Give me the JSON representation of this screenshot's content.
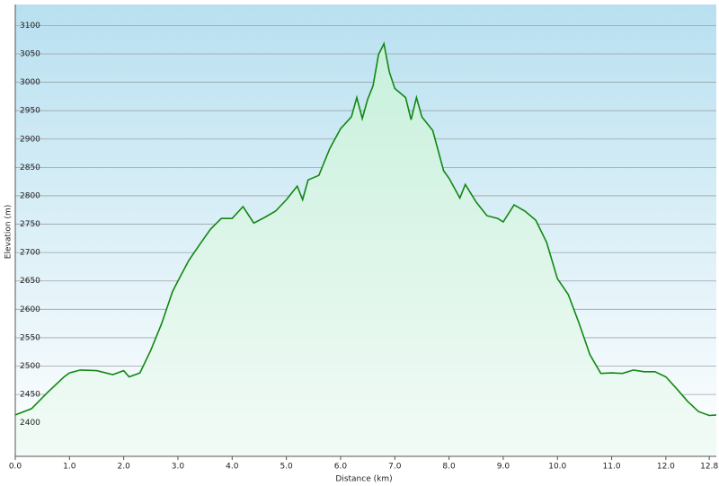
{
  "chart_data": {
    "type": "area",
    "x_label": "Distance (km)",
    "y_label": "Elevation (m)",
    "x": [
      0,
      0.3,
      0.6,
      0.9,
      1.0,
      1.2,
      1.5,
      1.8,
      2.0,
      2.1,
      2.3,
      2.5,
      2.7,
      2.9,
      3.0,
      3.2,
      3.4,
      3.6,
      3.8,
      4.0,
      4.2,
      4.4,
      4.6,
      4.8,
      5.0,
      5.2,
      5.3,
      5.4,
      5.6,
      5.8,
      6.0,
      6.2,
      6.3,
      6.4,
      6.5,
      6.6,
      6.7,
      6.8,
      6.9,
      7.0,
      7.2,
      7.3,
      7.4,
      7.5,
      7.7,
      7.9,
      8.0,
      8.2,
      8.3,
      8.5,
      8.7,
      8.9,
      9.0,
      9.2,
      9.4,
      9.6,
      9.8,
      10.0,
      10.2,
      10.4,
      10.6,
      10.8,
      11.0,
      11.2,
      11.4,
      11.6,
      11.8,
      12.0,
      12.2,
      12.4,
      12.6,
      12.8,
      12.93
    ],
    "values": [
      2414,
      2425,
      2454,
      2481,
      2488,
      2493,
      2492,
      2485,
      2492,
      2481,
      2488,
      2528,
      2575,
      2631,
      2650,
      2686,
      2714,
      2741,
      2760,
      2760,
      2781,
      2752,
      2762,
      2773,
      2793,
      2817,
      2793,
      2828,
      2836,
      2883,
      2918,
      2939,
      2973,
      2936,
      2970,
      2994,
      3049,
      3068,
      3018,
      2989,
      2973,
      2934,
      2973,
      2939,
      2915,
      2844,
      2831,
      2796,
      2820,
      2789,
      2765,
      2760,
      2754,
      2784,
      2773,
      2757,
      2718,
      2654,
      2626,
      2575,
      2520,
      2487,
      2488,
      2487,
      2493,
      2490,
      2490,
      2481,
      2460,
      2438,
      2420,
      2413,
      2414
    ],
    "color": "#118811",
    "xlim": [
      0,
      12.93
    ],
    "ylim": [
      2341,
      3137
    ],
    "xticks": [
      {
        "value": 0,
        "label": "0.0"
      },
      {
        "value": 1,
        "label": "1.0"
      },
      {
        "value": 2,
        "label": "2.0"
      },
      {
        "value": 3,
        "label": "3.0"
      },
      {
        "value": 4,
        "label": "4.0"
      },
      {
        "value": 5,
        "label": "5.0"
      },
      {
        "value": 6,
        "label": "6.0"
      },
      {
        "value": 7,
        "label": "7.0"
      },
      {
        "value": 8,
        "label": "8.0"
      },
      {
        "value": 9,
        "label": "9.0"
      },
      {
        "value": 10,
        "label": "10.0"
      },
      {
        "value": 11,
        "label": "11.0"
      },
      {
        "value": 12,
        "label": "12.0"
      },
      12.8
    ],
    "yticks": [
      2400,
      2450,
      2500,
      2550,
      2600,
      2650,
      2700,
      2750,
      2800,
      2850,
      2900,
      2950,
      3000,
      3050,
      3100
    ],
    "grid": true
  }
}
